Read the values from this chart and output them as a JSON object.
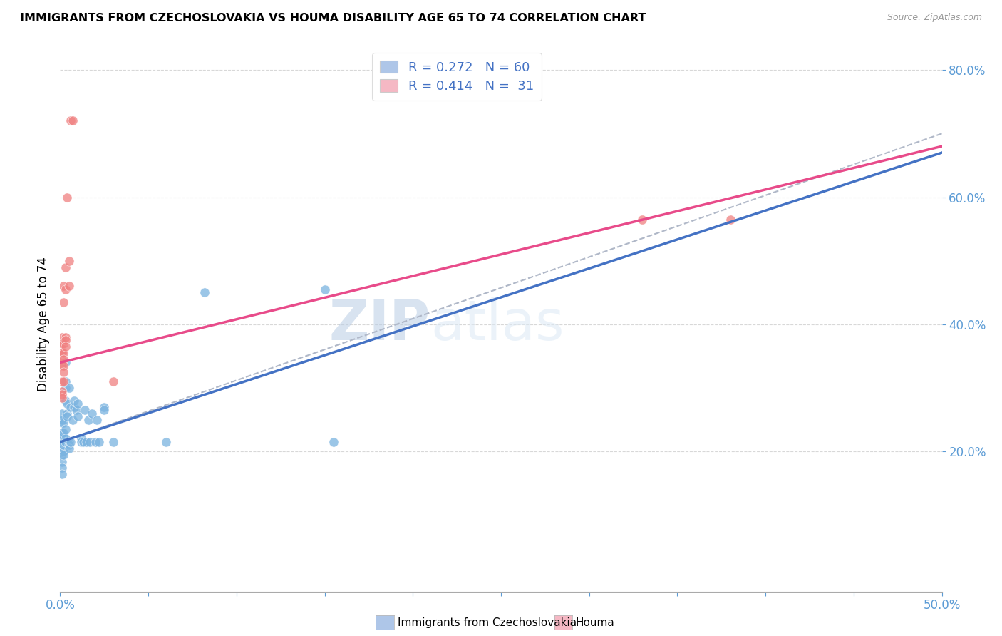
{
  "title": "IMMIGRANTS FROM CZECHOSLOVAKIA VS HOUMA DISABILITY AGE 65 TO 74 CORRELATION CHART",
  "source": "Source: ZipAtlas.com",
  "ylabel": "Disability Age 65 to 74",
  "xlim": [
    0.0,
    0.5
  ],
  "ylim": [
    -0.02,
    0.82
  ],
  "xtick_vals": [
    0.0,
    0.05,
    0.1,
    0.15,
    0.2,
    0.25,
    0.3,
    0.35,
    0.4,
    0.45,
    0.5
  ],
  "ytick_vals": [
    0.2,
    0.4,
    0.6,
    0.8
  ],
  "ytick_labels": [
    "20.0%",
    "40.0%",
    "60.0%",
    "80.0%"
  ],
  "legend_entries": [
    {
      "label": "R = 0.272   N = 60",
      "facecolor": "#aec6e8"
    },
    {
      "label": "R = 0.414   N =  31",
      "facecolor": "#f5b8c4"
    }
  ],
  "blue_dot_color": "#7ab3e0",
  "pink_dot_color": "#f08080",
  "blue_line_color": "#4472c4",
  "pink_line_color": "#e84b8a",
  "dashed_line_color": "#b0b8c8",
  "watermark_zip": "ZIP",
  "watermark_atlas": "atlas",
  "blue_scatter": [
    [
      0.001,
      0.22
    ],
    [
      0.001,
      0.215
    ],
    [
      0.001,
      0.21
    ],
    [
      0.001,
      0.205
    ],
    [
      0.001,
      0.23
    ],
    [
      0.001,
      0.245
    ],
    [
      0.001,
      0.26
    ],
    [
      0.001,
      0.195
    ],
    [
      0.001,
      0.183
    ],
    [
      0.001,
      0.175
    ],
    [
      0.001,
      0.165
    ],
    [
      0.001,
      0.25
    ],
    [
      0.002,
      0.225
    ],
    [
      0.002,
      0.22
    ],
    [
      0.002,
      0.215
    ],
    [
      0.002,
      0.23
    ],
    [
      0.002,
      0.245
    ],
    [
      0.002,
      0.2
    ],
    [
      0.002,
      0.195
    ],
    [
      0.002,
      0.21
    ],
    [
      0.003,
      0.235
    ],
    [
      0.003,
      0.28
    ],
    [
      0.003,
      0.3
    ],
    [
      0.003,
      0.31
    ],
    [
      0.003,
      0.34
    ],
    [
      0.003,
      0.22
    ],
    [
      0.003,
      0.215
    ],
    [
      0.004,
      0.275
    ],
    [
      0.004,
      0.26
    ],
    [
      0.004,
      0.255
    ],
    [
      0.005,
      0.3
    ],
    [
      0.005,
      0.215
    ],
    [
      0.005,
      0.21
    ],
    [
      0.005,
      0.205
    ],
    [
      0.006,
      0.27
    ],
    [
      0.006,
      0.215
    ],
    [
      0.007,
      0.25
    ],
    [
      0.008,
      0.27
    ],
    [
      0.008,
      0.28
    ],
    [
      0.009,
      0.265
    ],
    [
      0.01,
      0.255
    ],
    [
      0.01,
      0.275
    ],
    [
      0.012,
      0.22
    ],
    [
      0.012,
      0.215
    ],
    [
      0.013,
      0.215
    ],
    [
      0.014,
      0.265
    ],
    [
      0.015,
      0.215
    ],
    [
      0.016,
      0.25
    ],
    [
      0.017,
      0.215
    ],
    [
      0.018,
      0.26
    ],
    [
      0.02,
      0.215
    ],
    [
      0.021,
      0.25
    ],
    [
      0.022,
      0.215
    ],
    [
      0.025,
      0.27
    ],
    [
      0.025,
      0.265
    ],
    [
      0.03,
      0.215
    ],
    [
      0.06,
      0.215
    ],
    [
      0.082,
      0.45
    ],
    [
      0.15,
      0.455
    ],
    [
      0.155,
      0.215
    ]
  ],
  "pink_scatter": [
    [
      0.001,
      0.38
    ],
    [
      0.001,
      0.355
    ],
    [
      0.001,
      0.345
    ],
    [
      0.001,
      0.335
    ],
    [
      0.001,
      0.31
    ],
    [
      0.001,
      0.295
    ],
    [
      0.001,
      0.29
    ],
    [
      0.001,
      0.285
    ],
    [
      0.001,
      0.355
    ],
    [
      0.001,
      0.37
    ],
    [
      0.002,
      0.46
    ],
    [
      0.002,
      0.435
    ],
    [
      0.002,
      0.37
    ],
    [
      0.002,
      0.355
    ],
    [
      0.002,
      0.345
    ],
    [
      0.002,
      0.335
    ],
    [
      0.002,
      0.325
    ],
    [
      0.002,
      0.31
    ],
    [
      0.003,
      0.49
    ],
    [
      0.003,
      0.455
    ],
    [
      0.003,
      0.38
    ],
    [
      0.003,
      0.375
    ],
    [
      0.003,
      0.365
    ],
    [
      0.004,
      0.6
    ],
    [
      0.005,
      0.5
    ],
    [
      0.005,
      0.46
    ],
    [
      0.006,
      0.72
    ],
    [
      0.007,
      0.72
    ],
    [
      0.03,
      0.31
    ],
    [
      0.33,
      0.565
    ],
    [
      0.38,
      0.565
    ]
  ],
  "blue_trendline": [
    [
      0.0,
      0.215
    ],
    [
      0.5,
      0.67
    ]
  ],
  "pink_trendline": [
    [
      0.0,
      0.34
    ],
    [
      0.5,
      0.68
    ]
  ],
  "dashed_trendline": [
    [
      0.0,
      0.215
    ],
    [
      0.5,
      0.7
    ]
  ]
}
